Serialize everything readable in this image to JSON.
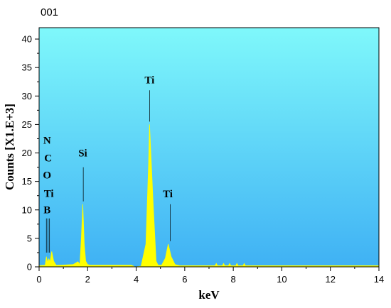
{
  "colors": {
    "bg_top": "#7ff8fb",
    "bg_bottom": "#3fb1f4",
    "spectrum_fill": "#ffff00",
    "axis": "#000000"
  },
  "chart_data": {
    "type": "area",
    "title": "001",
    "xlabel": "keV",
    "ylabel": "Counts [X1.E+3]",
    "xlim": [
      0,
      14
    ],
    "ylim": [
      0,
      42
    ],
    "grid": false,
    "legend": "none",
    "x_ticks": [
      0,
      2,
      4,
      6,
      8,
      10,
      12,
      14
    ],
    "y_ticks": [
      0,
      5,
      10,
      15,
      20,
      25,
      30,
      35,
      40
    ],
    "series": [
      {
        "x": [
          0.0,
          0.25,
          0.3,
          0.35,
          0.4,
          0.45,
          0.52,
          0.6,
          0.7,
          0.9,
          1.4,
          1.6,
          1.68,
          1.74,
          1.8,
          1.86,
          1.92,
          2.0,
          2.1,
          2.4,
          3.8,
          3.95,
          4.2,
          4.4,
          4.51,
          4.55,
          4.7,
          4.82,
          4.9,
          5.05,
          5.2,
          5.32,
          5.44,
          5.6,
          5.8,
          7.25,
          7.3,
          7.35,
          7.55,
          7.6,
          7.65,
          7.8,
          7.85,
          7.9,
          8.1,
          8.15,
          8.2,
          8.4,
          8.45,
          8.5,
          14.0
        ],
        "values": [
          0.2,
          0.3,
          1.8,
          0.8,
          1.4,
          0.9,
          2.7,
          1.0,
          0.3,
          0.3,
          0.4,
          0.9,
          0.4,
          5.0,
          11.0,
          4.0,
          1.0,
          0.4,
          0.3,
          0.3,
          0.3,
          0.0,
          0.1,
          4.0,
          18.0,
          25.0,
          11.0,
          1.0,
          0.3,
          0.3,
          1.5,
          4.0,
          1.8,
          0.4,
          0.2,
          0.2,
          0.6,
          0.2,
          0.2,
          0.6,
          0.2,
          0.2,
          0.6,
          0.2,
          0.2,
          0.6,
          0.2,
          0.2,
          0.6,
          0.2,
          0.2
        ]
      }
    ],
    "annotations": [
      {
        "text": "N",
        "x": 0.33,
        "y": 21.6
      },
      {
        "text": "C",
        "x": 0.37,
        "y": 18.5
      },
      {
        "text": "O",
        "x": 0.33,
        "y": 15.5
      },
      {
        "text": "Ti",
        "x": 0.4,
        "y": 12.3
      },
      {
        "text": "B",
        "x": 0.33,
        "y": 9.4
      },
      {
        "text": "Si",
        "x": 1.8,
        "y": 19.4
      },
      {
        "text": "Ti",
        "x": 4.55,
        "y": 32.2
      },
      {
        "text": "Ti",
        "x": 5.3,
        "y": 12.2
      }
    ],
    "marker_lines": [
      {
        "x": 0.3,
        "y_from": 2.5,
        "y_to": 8.5
      },
      {
        "x": 0.37,
        "y_from": 2.5,
        "y_to": 8.5
      },
      {
        "x": 0.43,
        "y_from": 2.5,
        "y_to": 8.5
      },
      {
        "x": 1.82,
        "y_from": 11.5,
        "y_to": 17.5
      },
      {
        "x": 4.55,
        "y_from": 25.5,
        "y_to": 31.0
      },
      {
        "x": 5.4,
        "y_from": 4.5,
        "y_to": 11.0
      }
    ]
  }
}
